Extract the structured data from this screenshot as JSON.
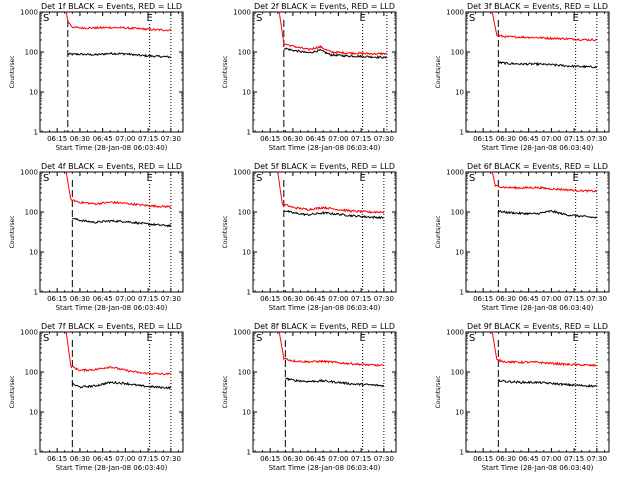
{
  "chart_data": [
    {
      "type": "line",
      "title": "Det 1f BLACK = Events, RED = LLD",
      "xlabel": "Start Time (28-Jan-08 06:03:40)",
      "ylabel": "Counts/sec",
      "yscale": "log",
      "ylim": [
        1,
        1000
      ],
      "xlim": [
        "06:03:40",
        "07:38:00"
      ],
      "xticks": [
        "06:15",
        "06:30",
        "06:45",
        "07:00",
        "07:15",
        "07:30"
      ],
      "yticks": [
        "1",
        "10",
        "100",
        "1000"
      ],
      "markers": [
        {
          "label": "S",
          "time": "06:03:40"
        },
        {
          "label": "E",
          "time": "07:16"
        }
      ],
      "colors": {
        "events": "#000000",
        "lld": "#ff0000"
      },
      "series": [
        {
          "key": "events",
          "x": [
            "06:22",
            "06:25",
            "06:30",
            "06:40",
            "06:50",
            "07:00",
            "07:10",
            "07:20",
            "07:30"
          ],
          "y": [
            88,
            88,
            88,
            85,
            92,
            90,
            82,
            78,
            75
          ]
        },
        {
          "key": "lld",
          "x": [
            "06:21",
            "06:22",
            "06:25",
            "06:30",
            "06:40",
            "06:50",
            "07:00",
            "07:10",
            "07:20",
            "07:30"
          ],
          "y": [
            1000,
            600,
            420,
            400,
            400,
            410,
            400,
            380,
            360,
            350
          ]
        }
      ]
    },
    {
      "type": "line",
      "title": "Det 2f BLACK = Events, RED = LLD",
      "xlabel": "Start Time (28-Jan-08 06:03:40)",
      "ylabel": "Counts/sec",
      "yscale": "log",
      "ylim": [
        1,
        1000
      ],
      "xlim": [
        "06:03:40",
        "07:38:00"
      ],
      "xticks": [
        "06:15",
        "06:30",
        "06:45",
        "07:00",
        "07:15",
        "07:30"
      ],
      "yticks": [
        "1",
        "10",
        "100",
        "1000"
      ],
      "markers": [
        {
          "label": "S",
          "time": "06:03:40"
        },
        {
          "label": "E",
          "time": "07:16"
        }
      ],
      "colors": {
        "events": "#000000",
        "lld": "#ff0000"
      },
      "series": [
        {
          "key": "events",
          "x": [
            "06:24",
            "06:30",
            "06:40",
            "06:48",
            "06:55",
            "07:05",
            "07:15",
            "07:25",
            "07:32"
          ],
          "y": [
            125,
            110,
            95,
            110,
            85,
            80,
            78,
            75,
            72
          ]
        },
        {
          "key": "lld",
          "x": [
            "06:21",
            "06:24",
            "06:30",
            "06:40",
            "06:48",
            "06:55",
            "07:05",
            "07:15",
            "07:25",
            "07:32"
          ],
          "y": [
            1000,
            160,
            140,
            115,
            135,
            100,
            95,
            92,
            90,
            92
          ]
        }
      ]
    },
    {
      "type": "line",
      "title": "Det 3f BLACK = Events, RED = LLD",
      "xlabel": "Start Time (28-Jan-08 06:03:40)",
      "ylabel": "Counts/sec",
      "yscale": "log",
      "ylim": [
        1,
        1000
      ],
      "xlim": [
        "06:03:40",
        "07:38:00"
      ],
      "xticks": [
        "06:15",
        "06:30",
        "06:45",
        "07:00",
        "07:15",
        "07:30"
      ],
      "yticks": [
        "1",
        "10",
        "100",
        "1000"
      ],
      "markers": [
        {
          "label": "S",
          "time": "06:03:40"
        },
        {
          "label": "E",
          "time": "07:16"
        }
      ],
      "colors": {
        "events": "#000000",
        "lld": "#ff0000"
      },
      "series": [
        {
          "key": "events",
          "x": [
            "06:25",
            "06:30",
            "06:40",
            "06:50",
            "07:00",
            "07:10",
            "07:20",
            "07:30"
          ],
          "y": [
            55,
            52,
            50,
            50,
            48,
            45,
            43,
            42
          ]
        },
        {
          "key": "lld",
          "x": [
            "06:21",
            "06:24",
            "06:30",
            "06:40",
            "06:50",
            "07:00",
            "07:10",
            "07:20",
            "07:30"
          ],
          "y": [
            1000,
            260,
            240,
            235,
            230,
            220,
            215,
            205,
            200
          ]
        }
      ]
    },
    {
      "type": "line",
      "title": "Det 4f BLACK = Events, RED = LLD",
      "xlabel": "Start Time (28-Jan-08 06:03:40)",
      "ylabel": "Counts/sec",
      "yscale": "log",
      "ylim": [
        1,
        1000
      ],
      "xlim": [
        "06:03:40",
        "07:38:00"
      ],
      "xticks": [
        "06:15",
        "06:30",
        "06:45",
        "07:00",
        "07:15",
        "07:30"
      ],
      "yticks": [
        "1",
        "10",
        "100",
        "1000"
      ],
      "markers": [
        {
          "label": "S",
          "time": "06:03:40"
        },
        {
          "label": "E",
          "time": "07:16"
        }
      ],
      "colors": {
        "events": "#000000",
        "lld": "#ff0000"
      },
      "series": [
        {
          "key": "events",
          "x": [
            "06:25",
            "06:30",
            "06:40",
            "06:50",
            "07:00",
            "07:10",
            "07:20",
            "07:30"
          ],
          "y": [
            70,
            62,
            55,
            60,
            58,
            52,
            48,
            45
          ]
        },
        {
          "key": "lld",
          "x": [
            "06:21",
            "06:24",
            "06:30",
            "06:40",
            "06:50",
            "07:00",
            "07:10",
            "07:20",
            "07:30"
          ],
          "y": [
            1000,
            200,
            175,
            160,
            175,
            165,
            150,
            140,
            135
          ]
        }
      ]
    },
    {
      "type": "line",
      "title": "Det 5f BLACK = Events, RED = LLD",
      "xlabel": "Start Time (28-Jan-08 06:03:40)",
      "ylabel": "Counts/sec",
      "yscale": "log",
      "ylim": [
        1,
        1000
      ],
      "xlim": [
        "06:03:40",
        "07:38:00"
      ],
      "xticks": [
        "06:15",
        "06:30",
        "06:45",
        "07:00",
        "07:15",
        "07:30"
      ],
      "yticks": [
        "1",
        "10",
        "100",
        "1000"
      ],
      "markers": [
        {
          "label": "S",
          "time": "06:03:40"
        },
        {
          "label": "E",
          "time": "07:16"
        }
      ],
      "colors": {
        "events": "#000000",
        "lld": "#ff0000"
      },
      "series": [
        {
          "key": "events",
          "x": [
            "06:24",
            "06:30",
            "06:40",
            "06:50",
            "07:00",
            "07:10",
            "07:20",
            "07:30"
          ],
          "y": [
            110,
            95,
            85,
            95,
            88,
            80,
            75,
            72
          ]
        },
        {
          "key": "lld",
          "x": [
            "06:20",
            "06:23",
            "06:30",
            "06:40",
            "06:50",
            "07:00",
            "07:10",
            "07:20",
            "07:30"
          ],
          "y": [
            1000,
            160,
            130,
            115,
            130,
            115,
            105,
            100,
            100
          ]
        }
      ]
    },
    {
      "type": "line",
      "title": "Det 6f BLACK = Events, RED = LLD",
      "xlabel": "Start Time (28-Jan-08 06:03:40)",
      "ylabel": "Counts/sec",
      "yscale": "log",
      "ylim": [
        1,
        1000
      ],
      "xlim": [
        "06:03:40",
        "07:38:00"
      ],
      "xticks": [
        "06:15",
        "06:30",
        "06:45",
        "07:00",
        "07:15",
        "07:30"
      ],
      "yticks": [
        "1",
        "10",
        "100",
        "1000"
      ],
      "markers": [
        {
          "label": "S",
          "time": "06:03:40"
        },
        {
          "label": "E",
          "time": "07:16"
        }
      ],
      "colors": {
        "events": "#000000",
        "lld": "#ff0000"
      },
      "series": [
        {
          "key": "events",
          "x": [
            "06:25",
            "06:30",
            "06:40",
            "06:50",
            "07:00",
            "07:10",
            "07:20",
            "07:30"
          ],
          "y": [
            105,
            98,
            92,
            90,
            105,
            85,
            78,
            72
          ]
        },
        {
          "key": "lld",
          "x": [
            "06:21",
            "06:23",
            "06:30",
            "06:40",
            "06:50",
            "07:00",
            "07:10",
            "07:20",
            "07:30"
          ],
          "y": [
            1000,
            450,
            410,
            400,
            410,
            380,
            360,
            340,
            330
          ]
        }
      ]
    },
    {
      "type": "line",
      "title": "Det 7f BLACK = Events, RED = LLD",
      "xlabel": "Start Time (28-Jan-08 06:03:40)",
      "ylabel": "Counts/sec",
      "yscale": "log",
      "ylim": [
        1,
        1000
      ],
      "xlim": [
        "06:03:40",
        "07:38:00"
      ],
      "xticks": [
        "06:15",
        "06:30",
        "06:45",
        "07:00",
        "07:15",
        "07:30"
      ],
      "yticks": [
        "1",
        "10",
        "100",
        "1000"
      ],
      "markers": [
        {
          "label": "S",
          "time": "06:03:40"
        },
        {
          "label": "E",
          "time": "07:16"
        }
      ],
      "colors": {
        "events": "#000000",
        "lld": "#ff0000"
      },
      "series": [
        {
          "key": "events",
          "x": [
            "06:25",
            "06:30",
            "06:40",
            "06:50",
            "07:00",
            "07:10",
            "07:20",
            "07:30"
          ],
          "y": [
            50,
            42,
            45,
            55,
            52,
            45,
            42,
            40
          ]
        },
        {
          "key": "lld",
          "x": [
            "06:21",
            "06:24",
            "06:30",
            "06:40",
            "06:50",
            "07:00",
            "07:10",
            "07:20",
            "07:30"
          ],
          "y": [
            1000,
            140,
            110,
            115,
            135,
            110,
            95,
            90,
            88
          ]
        }
      ]
    },
    {
      "type": "line",
      "title": "Det 8f BLACK = Events, RED = LLD",
      "xlabel": "Start Time (28-Jan-08 06:03:40)",
      "ylabel": "Counts/sec",
      "yscale": "log",
      "ylim": [
        1,
        1000
      ],
      "xlim": [
        "06:03:40",
        "07:38:00"
      ],
      "xticks": [
        "06:15",
        "06:30",
        "06:45",
        "07:00",
        "07:15",
        "07:30"
      ],
      "yticks": [
        "1",
        "10",
        "100",
        "1000"
      ],
      "markers": [
        {
          "label": "S",
          "time": "06:03:40"
        },
        {
          "label": "E",
          "time": "07:16"
        }
      ],
      "colors": {
        "events": "#000000",
        "lld": "#ff0000"
      },
      "series": [
        {
          "key": "events",
          "x": [
            "06:25",
            "06:30",
            "06:40",
            "06:50",
            "07:00",
            "07:10",
            "07:20",
            "07:30"
          ],
          "y": [
            70,
            62,
            58,
            60,
            55,
            50,
            48,
            45
          ]
        },
        {
          "key": "lld",
          "x": [
            "06:21",
            "06:24",
            "06:30",
            "06:40",
            "06:50",
            "07:00",
            "07:10",
            "07:20",
            "07:30"
          ],
          "y": [
            1000,
            220,
            190,
            180,
            185,
            170,
            160,
            150,
            145
          ]
        }
      ]
    },
    {
      "type": "line",
      "title": "Det 9f BLACK = Events, RED = LLD",
      "xlabel": "Start Time (28-Jan-08 06:03:40)",
      "ylabel": "Counts/sec",
      "yscale": "log",
      "ylim": [
        1,
        1000
      ],
      "xlim": [
        "06:03:40",
        "07:38:00"
      ],
      "xticks": [
        "06:15",
        "06:30",
        "06:45",
        "07:00",
        "07:15",
        "07:30"
      ],
      "yticks": [
        "1",
        "10",
        "100",
        "1000"
      ],
      "markers": [
        {
          "label": "S",
          "time": "06:03:40"
        },
        {
          "label": "E",
          "time": "07:16"
        }
      ],
      "colors": {
        "events": "#000000",
        "lld": "#ff0000"
      },
      "series": [
        {
          "key": "events",
          "x": [
            "06:25",
            "06:30",
            "06:40",
            "06:50",
            "07:00",
            "07:10",
            "07:20",
            "07:30"
          ],
          "y": [
            62,
            58,
            55,
            55,
            52,
            48,
            46,
            44
          ]
        },
        {
          "key": "lld",
          "x": [
            "06:21",
            "06:24",
            "06:30",
            "06:40",
            "06:50",
            "07:00",
            "07:10",
            "07:20",
            "07:30"
          ],
          "y": [
            1000,
            200,
            180,
            175,
            175,
            165,
            155,
            150,
            145
          ]
        }
      ]
    }
  ]
}
